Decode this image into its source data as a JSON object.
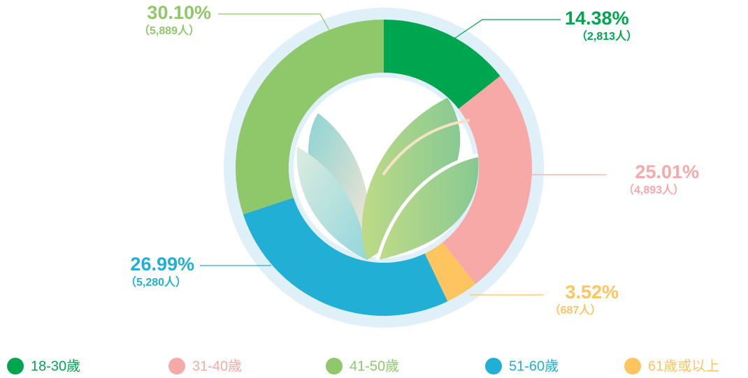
{
  "chart_data": {
    "type": "donut",
    "categories": [
      "18-30歲",
      "31-40歲",
      "41-50歲",
      "51-60歲",
      "61歲或以上"
    ],
    "values": [
      14.38,
      25.01,
      30.1,
      26.99,
      3.52
    ],
    "value_labels": [
      "14.38%",
      "25.01%",
      "30.10%",
      "26.99%",
      "3.52%"
    ],
    "counts": [
      2813,
      4893,
      5889,
      5280,
      687
    ],
    "count_labels": [
      "（2,813人）",
      "（4,893人）",
      "（5,889人）",
      "（5,280人）",
      "（687人）"
    ],
    "colors": [
      "#00a54f",
      "#f7a9a8",
      "#8fc86b",
      "#22afd6",
      "#fdc45f"
    ]
  }
}
